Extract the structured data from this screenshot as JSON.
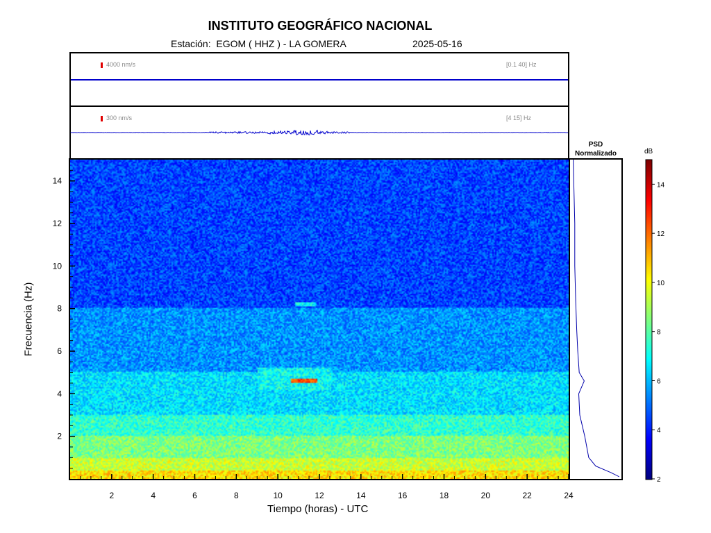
{
  "header": {
    "title": "INSTITUTO GEOGRÁFICO NACIONAL",
    "station": "Estación:  EGOM ( HHZ ) - LA GOMERA",
    "date": "2025-05-16"
  },
  "trace_top": {
    "amplitude": "4000 nm/s",
    "band": "[0.1 40] Hz",
    "color": "#0000cc"
  },
  "trace_bottom": {
    "amplitude": "300 nm/s",
    "band": "[4 15] Hz",
    "color": "#0000cc"
  },
  "psd": {
    "title_line1": "PSD",
    "title_line2": "Normalizado"
  },
  "colorbar": {
    "label": "dB",
    "range": [
      2,
      15
    ],
    "ticks": [
      "2",
      "4",
      "6",
      "8",
      "10",
      "12",
      "14"
    ]
  },
  "axes": {
    "xlabel": "Tiempo (horas) - UTC",
    "ylabel": "Frecuencia  (Hz)",
    "x_ticks": [
      "2",
      "4",
      "6",
      "8",
      "10",
      "12",
      "14",
      "16",
      "18",
      "20",
      "22",
      "24"
    ],
    "y_ticks": [
      "2",
      "4",
      "6",
      "8",
      "10",
      "12",
      "14"
    ]
  },
  "chart_data": {
    "type": "heatmap",
    "title": "INSTITUTO GEOGRÁFICO NACIONAL",
    "xlabel": "Tiempo (horas) - UTC",
    "ylabel": "Frecuencia  (Hz)",
    "xlim": [
      0,
      24
    ],
    "ylim": [
      0,
      15
    ],
    "color_scale": {
      "label": "dB",
      "min": 2,
      "max": 15,
      "colormap": "jet"
    },
    "band_level_db": [
      {
        "freq": [
          0,
          0.4
        ],
        "db": 10.5
      },
      {
        "freq": [
          0.4,
          1
        ],
        "db": 9.5
      },
      {
        "freq": [
          1,
          2
        ],
        "db": 8.5
      },
      {
        "freq": [
          2,
          3
        ],
        "db": 7.5
      },
      {
        "freq": [
          3,
          5
        ],
        "db": 6.5
      },
      {
        "freq": [
          5,
          8
        ],
        "db": 5.5
      },
      {
        "freq": [
          8,
          15
        ],
        "db": 4.5
      }
    ],
    "signal_features": [
      {
        "time": [
          10.6,
          11.9
        ],
        "freq": [
          4.5,
          4.7
        ],
        "db": 12.5
      },
      {
        "time": [
          9.0,
          12.6
        ],
        "freq": [
          4.2,
          5.2
        ],
        "db": 7
      },
      {
        "time": [
          10.8,
          11.8
        ],
        "freq": [
          8.1,
          8.3
        ],
        "db": 7
      }
    ],
    "psd_normalized": [
      {
        "freq": 0.1,
        "value": 0.97
      },
      {
        "freq": 0.3,
        "value": 0.8
      },
      {
        "freq": 0.6,
        "value": 0.5
      },
      {
        "freq": 1,
        "value": 0.36
      },
      {
        "freq": 2,
        "value": 0.28
      },
      {
        "freq": 3,
        "value": 0.18
      },
      {
        "freq": 4,
        "value": 0.16
      },
      {
        "freq": 4.6,
        "value": 0.27
      },
      {
        "freq": 5,
        "value": 0.17
      },
      {
        "freq": 6,
        "value": 0.14
      },
      {
        "freq": 7,
        "value": 0.12
      },
      {
        "freq": 8.3,
        "value": 0.1
      },
      {
        "freq": 10,
        "value": 0.08
      },
      {
        "freq": 12,
        "value": 0.08
      },
      {
        "freq": 14,
        "value": 0.06
      },
      {
        "freq": 15,
        "value": 0.05
      }
    ]
  }
}
